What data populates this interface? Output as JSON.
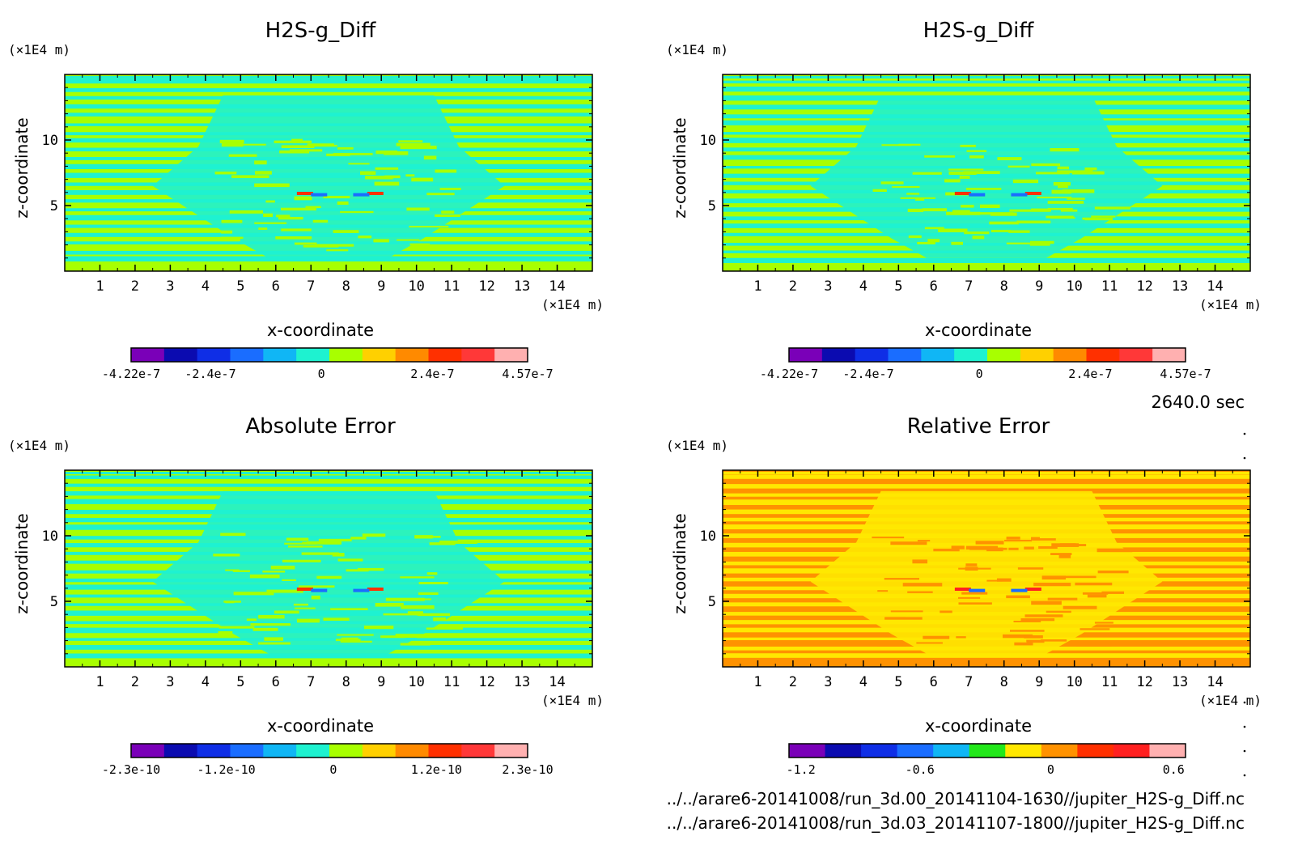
{
  "time_label": "2640.0 sec",
  "footer_files": [
    "../../arare6-20141008/run_3d.00_20141104-1630//jupiter_H2S-g_Diff.nc",
    "../../arare6-20141008/run_3d.03_20141107-1800//jupiter_H2S-g_Diff.nc"
  ],
  "chart_data": [
    {
      "type": "heatmap",
      "title": "H2S-g_Diff",
      "xlabel": "x-coordinate",
      "ylabel": "z-coordinate",
      "x_unit": "(×1E4 m)",
      "y_unit": "(×1E4 m)",
      "xlim": [
        0,
        15
      ],
      "ylim": [
        0,
        15
      ],
      "x_ticks": [
        "1",
        "2",
        "3",
        "4",
        "5",
        "6",
        "7",
        "8",
        "9",
        "10",
        "11",
        "12",
        "13",
        "14"
      ],
      "y_ticks": [
        "5",
        "10"
      ],
      "colorbar": {
        "colors": [
          "#7a00b8",
          "#0b0bb0",
          "#0f2ee6",
          "#1a6dff",
          "#10b6f5",
          "#1ef2d0",
          "#a8ff00",
          "#ffd000",
          "#ff8a00",
          "#ff3000",
          "#ff3838",
          "#ffb0b0"
        ],
        "tick_labels": [
          "-4.22e-7",
          "-2.4e-7",
          "0",
          "2.4e-7",
          "4.57e-7"
        ],
        "tick_fracs": [
          0,
          0.2,
          0.48,
          0.76,
          1
        ]
      },
      "background": "#a8ff00",
      "pattern": "#1ef2d0"
    },
    {
      "type": "heatmap",
      "title": "H2S-g_Diff",
      "xlabel": "x-coordinate",
      "ylabel": "z-coordinate",
      "x_unit": "(×1E4 m)",
      "y_unit": "(×1E4 m)",
      "xlim": [
        0,
        15
      ],
      "ylim": [
        0,
        15
      ],
      "x_ticks": [
        "1",
        "2",
        "3",
        "4",
        "5",
        "6",
        "7",
        "8",
        "9",
        "10",
        "11",
        "12",
        "13",
        "14"
      ],
      "y_ticks": [
        "5",
        "10"
      ],
      "colorbar": {
        "colors": [
          "#7a00b8",
          "#0b0bb0",
          "#0f2ee6",
          "#1a6dff",
          "#10b6f5",
          "#1ef2d0",
          "#a8ff00",
          "#ffd000",
          "#ff8a00",
          "#ff3000",
          "#ff3838",
          "#ffb0b0"
        ],
        "tick_labels": [
          "-4.22e-7",
          "-2.4e-7",
          "0",
          "2.4e-7",
          "4.57e-7"
        ],
        "tick_fracs": [
          0,
          0.2,
          0.48,
          0.76,
          1
        ]
      },
      "background": "#a8ff00",
      "pattern": "#1ef2d0"
    },
    {
      "type": "heatmap",
      "title": "Absolute Error",
      "xlabel": "x-coordinate",
      "ylabel": "z-coordinate",
      "x_unit": "(×1E4 m)",
      "y_unit": "(×1E4 m)",
      "xlim": [
        0,
        15
      ],
      "ylim": [
        0,
        15
      ],
      "x_ticks": [
        "1",
        "2",
        "3",
        "4",
        "5",
        "6",
        "7",
        "8",
        "9",
        "10",
        "11",
        "12",
        "13",
        "14"
      ],
      "y_ticks": [
        "5",
        "10"
      ],
      "colorbar": {
        "colors": [
          "#7a00b8",
          "#0b0bb0",
          "#0f2ee6",
          "#1a6dff",
          "#10b6f5",
          "#1ef2d0",
          "#a8ff00",
          "#ffd000",
          "#ff8a00",
          "#ff3000",
          "#ff3838",
          "#ffb0b0"
        ],
        "tick_labels": [
          "-2.3e-10",
          "-1.2e-10",
          "0",
          "1.2e-10",
          "2.3e-10"
        ],
        "tick_fracs": [
          0,
          0.24,
          0.51,
          0.77,
          1
        ]
      },
      "background": "#a8ff00",
      "pattern": "#1ef2d0"
    },
    {
      "type": "heatmap",
      "title": "Relative Error",
      "xlabel": "x-coordinate",
      "ylabel": "z-coordinate",
      "x_unit": "(×1E4 m)",
      "y_unit": "(×1E4 m)",
      "xlim": [
        0,
        15
      ],
      "ylim": [
        0,
        15
      ],
      "x_ticks": [
        "1",
        "2",
        "3",
        "4",
        "5",
        "6",
        "7",
        "8",
        "9",
        "10",
        "11",
        "12",
        "13",
        "14"
      ],
      "y_ticks": [
        "5",
        "10"
      ],
      "colorbar": {
        "colors": [
          "#7a00b8",
          "#0b0bb0",
          "#0f2ee6",
          "#1a6dff",
          "#10b6f5",
          "#22e81a",
          "#ffe800",
          "#ff9200",
          "#ff3000",
          "#ff2020",
          "#ffb0b0"
        ],
        "tick_labels": [
          "-1.2",
          "-0.6",
          "0",
          "0.6"
        ],
        "tick_fracs": [
          0.03,
          0.33,
          0.66,
          0.97
        ]
      },
      "background": "#ff9200",
      "pattern": "#ffe800"
    }
  ]
}
